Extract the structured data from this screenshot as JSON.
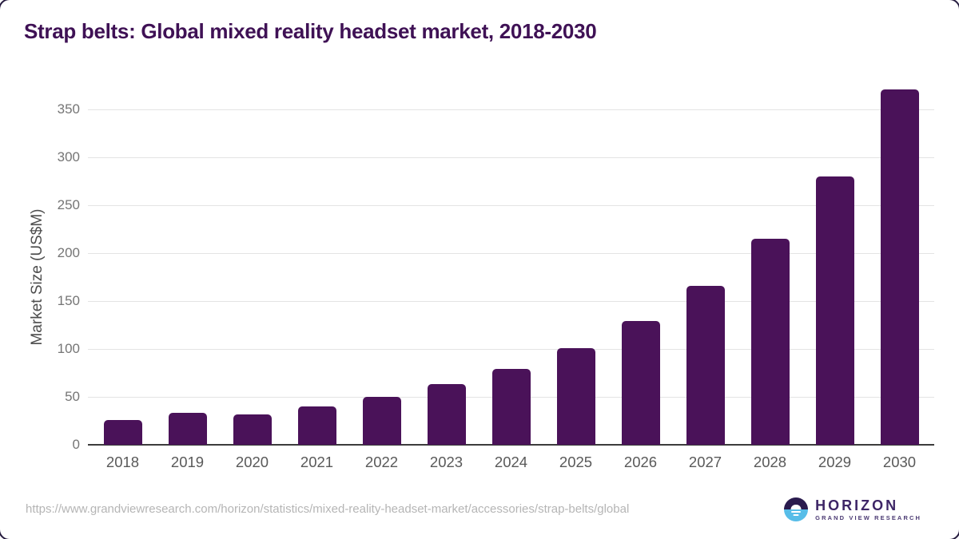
{
  "header": {
    "title": "Strap belts: Global mixed reality headset market, 2018-2030"
  },
  "chart_data": {
    "type": "bar",
    "title": "Strap belts: Global mixed reality headset market, 2018-2030",
    "categories": [
      "2018",
      "2019",
      "2020",
      "2021",
      "2022",
      "2023",
      "2024",
      "2025",
      "2026",
      "2027",
      "2028",
      "2029",
      "2030"
    ],
    "values": [
      26,
      33,
      32,
      40,
      50,
      63,
      79,
      101,
      129,
      166,
      215,
      280,
      371
    ],
    "xlabel": "",
    "ylabel": "Market Size (US$M)",
    "ylim": [
      0,
      375
    ],
    "yticks": [
      0,
      50,
      100,
      150,
      200,
      250,
      300,
      350
    ],
    "grid": true,
    "legend": "none",
    "bar_color": "#4a1259"
  },
  "footer": {
    "source_url": "https://www.grandviewresearch.com/horizon/statistics/mixed-reality-headset-market/accessories/strap-belts/global",
    "logo": {
      "icon": "sunset-horizon-icon",
      "name": "HORIZON",
      "subtitle": "GRAND VIEW RESEARCH",
      "circle_top_color": "#2a1b4e",
      "circle_bottom_color": "#57bde8"
    }
  },
  "colors": {
    "title_text": "#3f1155",
    "bar": "#4a1259",
    "gridline": "#e4e4e4",
    "axis_line": "#3c3c3c",
    "y_tick_text": "#757575",
    "x_tick_text": "#595959",
    "source_text": "#b5b5b5"
  }
}
